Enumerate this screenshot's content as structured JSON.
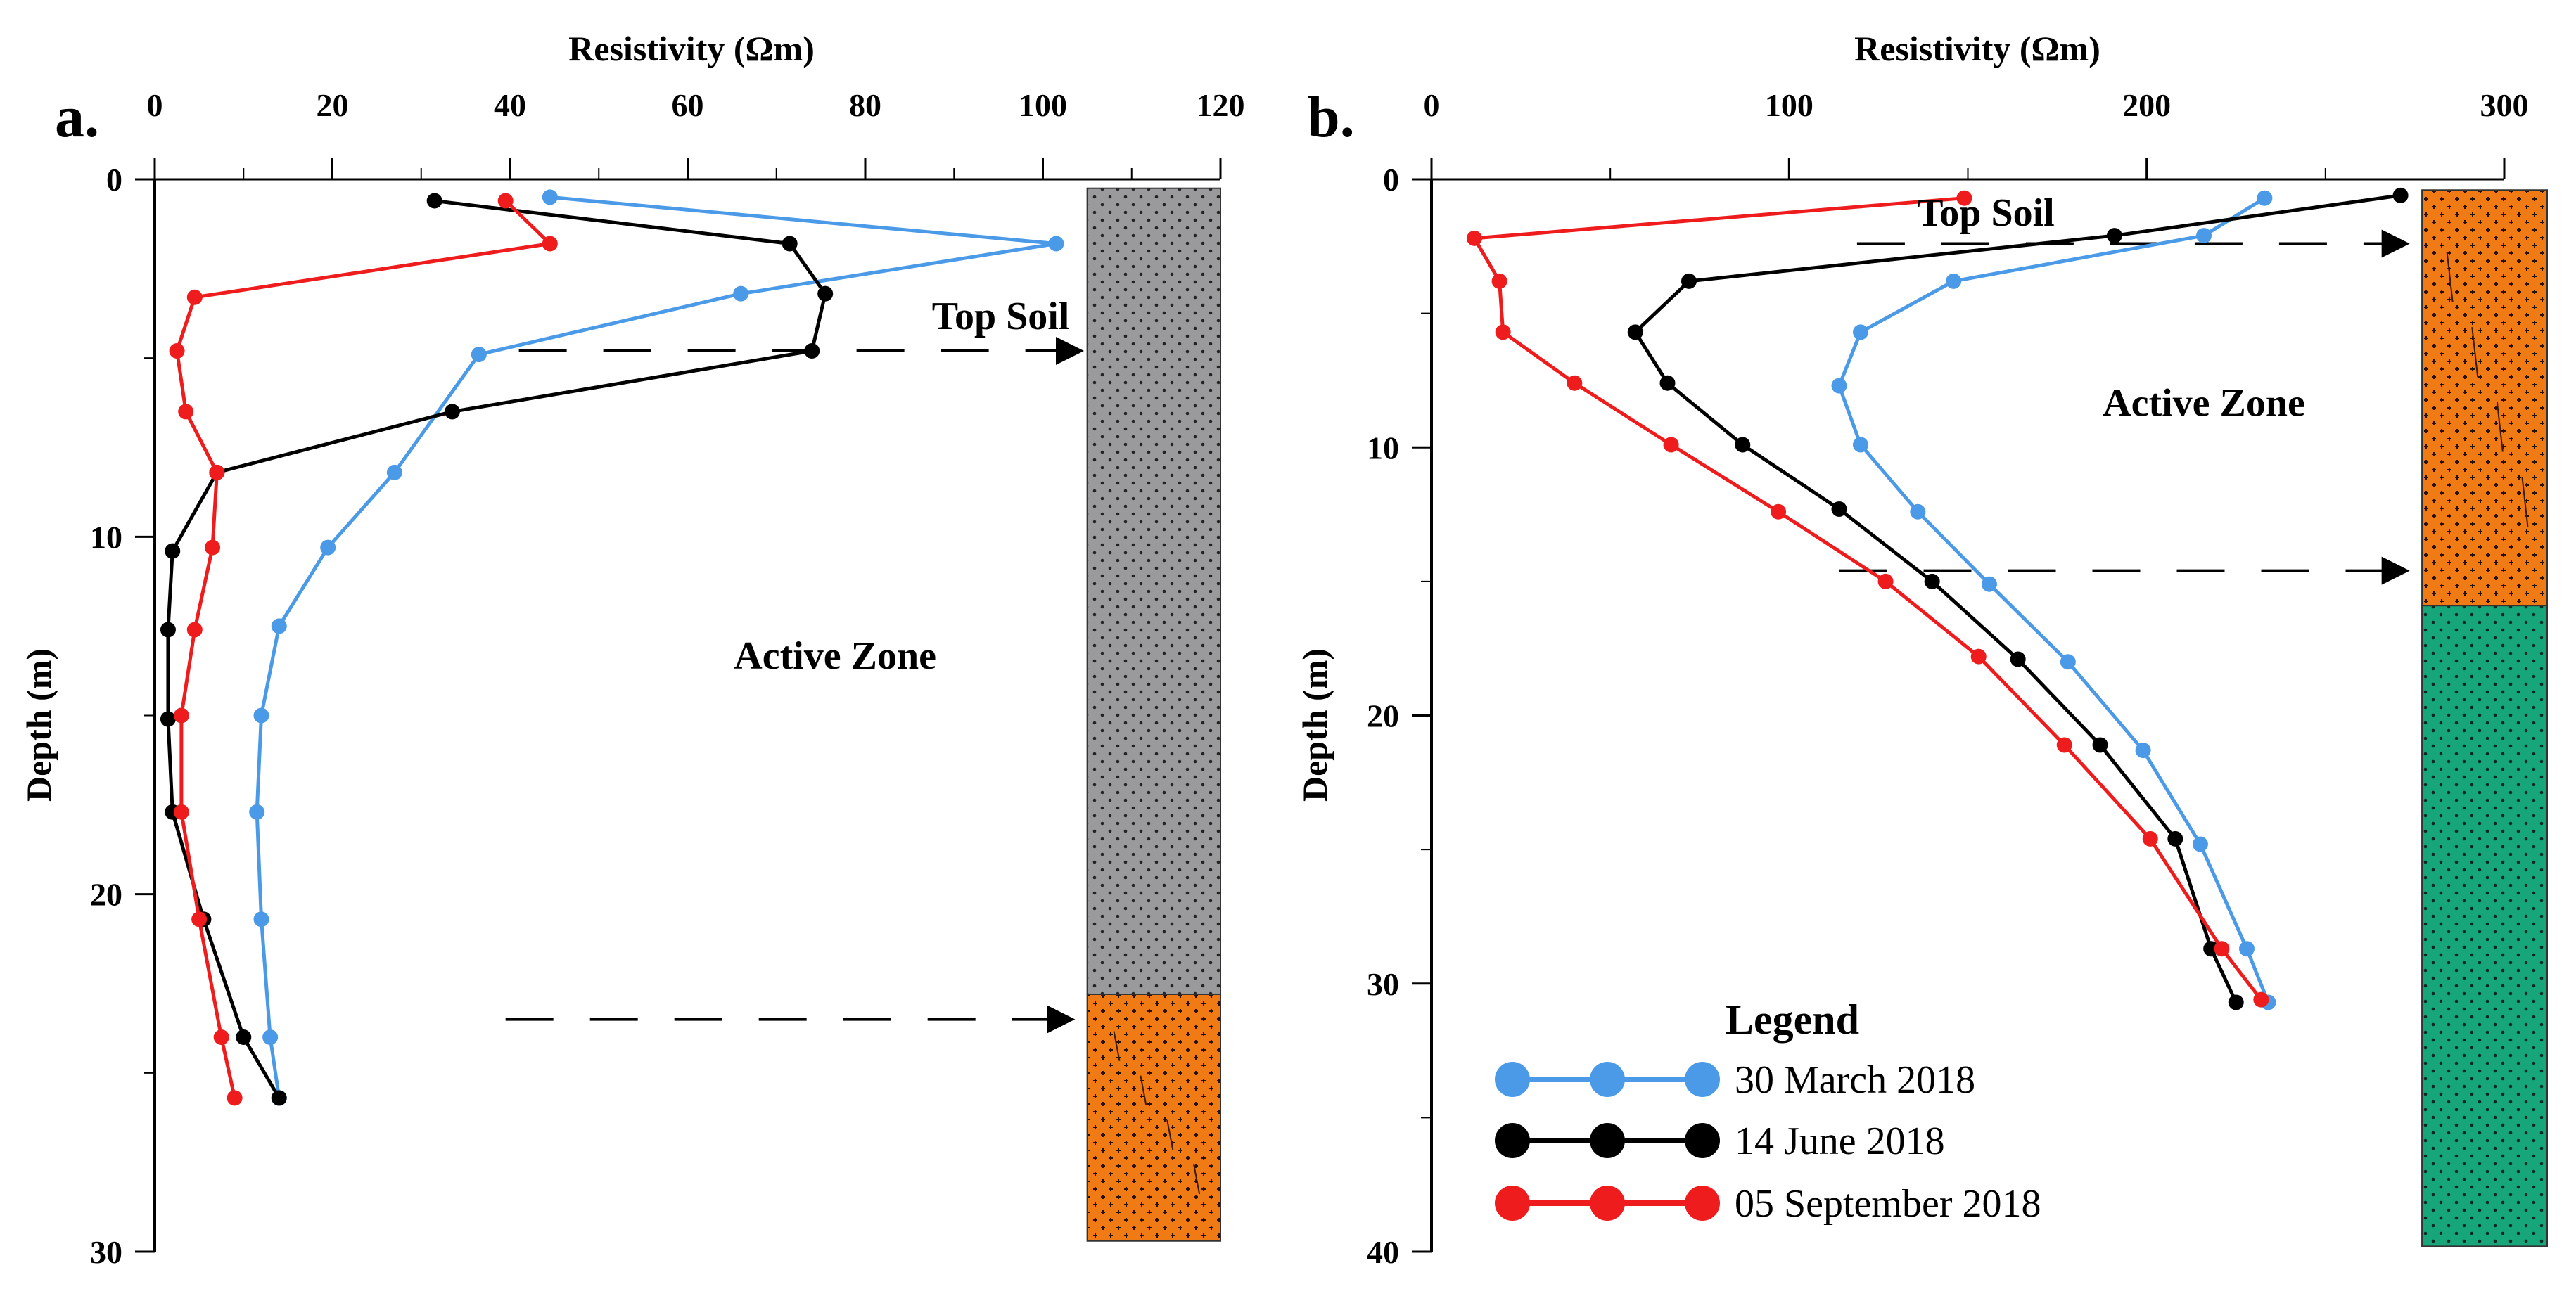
{
  "colors": {
    "march": "#4a9ae8",
    "june": "#000000",
    "september": "#ee1c1c",
    "gray_layer": "#9a9a9c",
    "orange_layer": "#f07a14",
    "green_layer": "#17a57a"
  },
  "legend": {
    "title": "Legend",
    "items": [
      {
        "key": "march",
        "label": "30 March 2018"
      },
      {
        "key": "june",
        "label": "14 June 2018"
      },
      {
        "key": "september",
        "label": "05 September 2018"
      }
    ]
  },
  "chart_data": [
    {
      "type": "line",
      "panel_label": "a.",
      "title": "",
      "xlabel": "Resistivity (Ωm)",
      "ylabel": "Depth (m)",
      "x_ticks": [
        0,
        20,
        40,
        60,
        80,
        100,
        120
      ],
      "x_tick_labels": [
        "0",
        "20",
        "40",
        "60",
        "80",
        "100",
        "120"
      ],
      "y_ticks": [
        0,
        10,
        20,
        30
      ],
      "y_tick_labels": [
        "0",
        "10",
        "20",
        "30"
      ],
      "xlim": [
        0,
        120
      ],
      "ylim": [
        0,
        30
      ],
      "y_inverted": true,
      "series": [
        {
          "name": "30 March 2018",
          "color_key": "march",
          "points": [
            [
              44.5,
              0.5
            ],
            [
              101.5,
              1.8
            ],
            [
              66,
              3.2
            ],
            [
              36.5,
              4.9
            ],
            [
              27,
              8.2
            ],
            [
              19.5,
              10.3
            ],
            [
              14,
              12.5
            ],
            [
              12,
              15.0
            ],
            [
              11.5,
              17.7
            ],
            [
              12,
              20.7
            ],
            [
              13,
              24.0
            ],
            [
              14,
              25.7
            ]
          ]
        },
        {
          "name": "14 June 2018",
          "color_key": "june",
          "points": [
            [
              31.5,
              0.6
            ],
            [
              71.5,
              1.8
            ],
            [
              75.5,
              3.2
            ],
            [
              74,
              4.8
            ],
            [
              33.5,
              6.5
            ],
            [
              7,
              8.2
            ],
            [
              2,
              10.4
            ],
            [
              1.5,
              12.6
            ],
            [
              1.5,
              15.1
            ],
            [
              2,
              17.7
            ],
            [
              5.5,
              20.7
            ],
            [
              10,
              24.0
            ],
            [
              14,
              25.7
            ]
          ]
        },
        {
          "name": "05 September 2018",
          "color_key": "september",
          "points": [
            [
              39.5,
              0.6
            ],
            [
              44.5,
              1.8
            ],
            [
              4.5,
              3.3
            ],
            [
              2.5,
              4.8
            ],
            [
              3.5,
              6.5
            ],
            [
              7,
              8.2
            ],
            [
              6.5,
              10.3
            ],
            [
              4.5,
              12.6
            ],
            [
              3,
              15.0
            ],
            [
              3,
              17.7
            ],
            [
              5,
              20.7
            ],
            [
              7.5,
              24.0
            ],
            [
              9,
              25.7
            ]
          ]
        }
      ],
      "annotations": [
        {
          "text": "Top Soil",
          "x": 103,
          "y": 3.8
        },
        {
          "text": "Active Zone",
          "x": 88,
          "y": 13.3
        }
      ],
      "boundaries": [
        {
          "depth": 4.8,
          "x_start": 41,
          "x_end": 104
        },
        {
          "depth": 23.5,
          "x_start": 39.5,
          "x_end": 103
        }
      ],
      "layers": [
        {
          "from": 0.25,
          "to": 22.8,
          "color_key": "gray_layer",
          "pattern": "dots"
        },
        {
          "from": 22.8,
          "to": 29.7,
          "color_key": "orange_layer",
          "pattern": "crosshatch"
        }
      ],
      "log_column_x": [
        105,
        120
      ]
    },
    {
      "type": "line",
      "panel_label": "b.",
      "title": "",
      "xlabel": "Resistivity (Ωm)",
      "ylabel": "Depth (m)",
      "x_ticks": [
        0,
        100,
        200,
        300
      ],
      "x_tick_labels": [
        "0",
        "100",
        "200",
        "300"
      ],
      "y_ticks": [
        0,
        10,
        20,
        30,
        40
      ],
      "y_tick_labels": [
        "0",
        "10",
        "20",
        "30",
        "40"
      ],
      "xlim": [
        0,
        300
      ],
      "ylim": [
        0,
        40
      ],
      "y_inverted": true,
      "series": [
        {
          "name": "30 March 2018",
          "color_key": "march",
          "points": [
            [
              233,
              0.7
            ],
            [
              216,
              2.1
            ],
            [
              146,
              3.8
            ],
            [
              120,
              5.7
            ],
            [
              114,
              7.7
            ],
            [
              120,
              9.9
            ],
            [
              136,
              12.4
            ],
            [
              156,
              15.1
            ],
            [
              178,
              18.0
            ],
            [
              199,
              21.3
            ],
            [
              215,
              24.8
            ],
            [
              228,
              28.7
            ],
            [
              234,
              30.7
            ]
          ]
        },
        {
          "name": "14 June 2018",
          "color_key": "june",
          "points": [
            [
              271,
              0.6
            ],
            [
              191,
              2.1
            ],
            [
              72,
              3.8
            ],
            [
              57,
              5.7
            ],
            [
              66,
              7.6
            ],
            [
              87,
              9.9
            ],
            [
              114,
              12.3
            ],
            [
              140,
              15.0
            ],
            [
              164,
              17.9
            ],
            [
              187,
              21.1
            ],
            [
              208,
              24.6
            ],
            [
              218,
              28.7
            ],
            [
              225,
              30.7
            ]
          ]
        },
        {
          "name": "05 September 2018",
          "color_key": "september",
          "points": [
            [
              149,
              0.7
            ],
            [
              12,
              2.2
            ],
            [
              19,
              3.8
            ],
            [
              20,
              5.7
            ],
            [
              40,
              7.6
            ],
            [
              67,
              9.9
            ],
            [
              97,
              12.4
            ],
            [
              127,
              15.0
            ],
            [
              153,
              17.8
            ],
            [
              177,
              21.1
            ],
            [
              201,
              24.6
            ],
            [
              221,
              28.7
            ],
            [
              232,
              30.6
            ]
          ]
        }
      ],
      "annotations": [
        {
          "text": "Top Soil",
          "x": 155,
          "y": 1.2
        },
        {
          "text": "Active Zone",
          "x": 216,
          "y": 8.3
        }
      ],
      "boundaries": [
        {
          "depth": 2.4,
          "x_start": 119,
          "x_end": 272
        },
        {
          "depth": 14.6,
          "x_start": 114,
          "x_end": 272
        }
      ],
      "layers": [
        {
          "from": 0.4,
          "to": 15.9,
          "color_key": "orange_layer",
          "pattern": "crosshatch"
        },
        {
          "from": 15.9,
          "to": 39.8,
          "color_key": "green_layer",
          "pattern": "dots"
        }
      ],
      "log_column_x": [
        277,
        312
      ]
    }
  ]
}
